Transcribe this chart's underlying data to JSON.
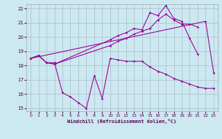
{
  "xlabel": "Windchill (Refroidissement éolien,°C)",
  "background_color": "#cce8f0",
  "grid_color": "#aabbcc",
  "line_color": "#990099",
  "xlim": [
    -0.5,
    23.5
  ],
  "ylim": [
    14.8,
    22.3
  ],
  "xticks": [
    0,
    1,
    2,
    3,
    4,
    5,
    6,
    7,
    8,
    9,
    10,
    11,
    12,
    13,
    14,
    15,
    16,
    17,
    18,
    19,
    20,
    21,
    22,
    23
  ],
  "yticks": [
    15,
    16,
    17,
    18,
    19,
    20,
    21,
    22
  ],
  "series": [
    {
      "x": [
        0,
        1,
        2,
        3,
        4,
        5,
        6,
        7,
        8,
        9,
        10,
        11,
        12,
        13,
        14,
        15,
        16,
        17,
        18,
        19,
        20,
        21,
        22,
        23
      ],
      "y": [
        18.5,
        18.7,
        18.2,
        18.2,
        16.1,
        15.8,
        15.4,
        15.0,
        17.3,
        15.7,
        18.5,
        18.4,
        18.3,
        18.3,
        18.3,
        17.9,
        17.6,
        17.4,
        17.1,
        16.9,
        16.7,
        16.5,
        16.4,
        16.4
      ]
    },
    {
      "x": [
        0,
        1,
        2,
        3,
        10,
        11,
        12,
        13,
        14,
        15,
        16,
        17,
        18,
        19,
        20,
        21,
        22,
        23
      ],
      "y": [
        18.5,
        18.7,
        18.2,
        18.1,
        19.8,
        20.1,
        20.3,
        20.6,
        20.5,
        21.7,
        21.5,
        22.2,
        21.3,
        21.1,
        19.9,
        18.8,
        null,
        null
      ]
    },
    {
      "x": [
        0,
        22,
        23
      ],
      "y": [
        18.5,
        21.1,
        17.5
      ]
    },
    {
      "x": [
        0,
        1,
        2,
        3,
        10,
        11,
        12,
        13,
        14,
        15,
        16,
        17,
        18,
        19,
        20,
        21,
        22,
        23
      ],
      "y": [
        18.5,
        18.7,
        18.2,
        18.1,
        19.4,
        19.7,
        19.9,
        20.2,
        20.4,
        20.6,
        21.2,
        21.6,
        21.2,
        20.9,
        20.9,
        20.7,
        null,
        null
      ]
    }
  ]
}
